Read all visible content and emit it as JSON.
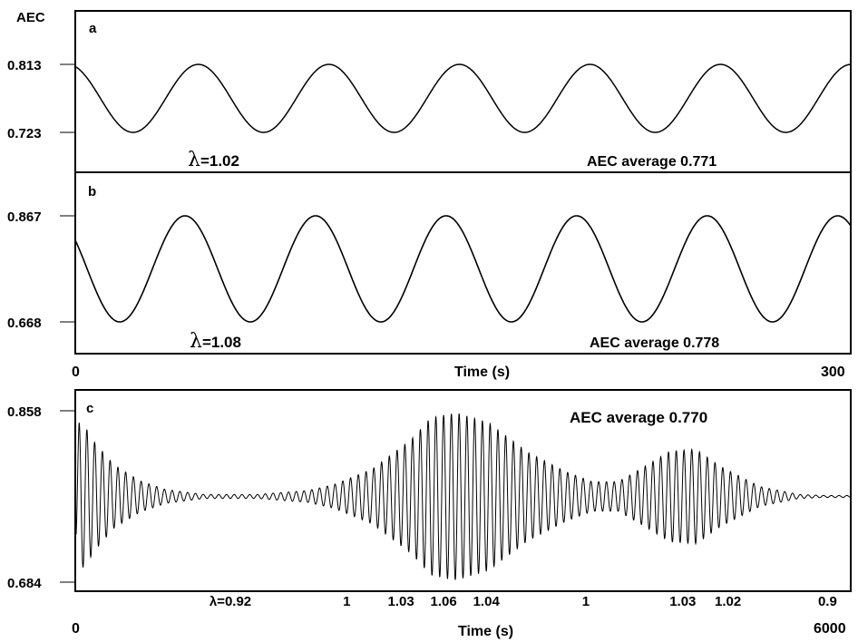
{
  "chart_data": [
    {
      "type": "line",
      "panel_label": "a",
      "ylabel": "AEC",
      "yticks": [
        "0.813",
        "0.723"
      ],
      "ylim": [
        0.723,
        0.813
      ],
      "xlim": [
        0,
        300
      ],
      "oscillation": {
        "min": 0.723,
        "max": 0.813,
        "period_s": 50.5,
        "start_phase": "falling from 0.81"
      },
      "annotations": {
        "lambda_symbol": "λ",
        "lambda_value": "=1.02",
        "average": "AEC average 0.771"
      }
    },
    {
      "type": "line",
      "panel_label": "b",
      "yticks": [
        "0.867",
        "0.668"
      ],
      "ylim": [
        0.668,
        0.867
      ],
      "xlim": [
        0,
        300
      ],
      "oscillation": {
        "min": 0.668,
        "max": 0.867,
        "period_s": 50.5,
        "start_phase": "falling from 0.84"
      },
      "annotations": {
        "lambda_symbol": "λ",
        "lambda_value": "=1.08",
        "average": "AEC average 0.778"
      },
      "xticks": [
        "0",
        "300"
      ],
      "xlabel": "Time (s)"
    },
    {
      "type": "line",
      "panel_label": "c",
      "yticks": [
        "0.858",
        "0.684"
      ],
      "ylim": [
        0.684,
        0.858
      ],
      "xlim": [
        0,
        6000
      ],
      "xticks": [
        "0",
        "6000"
      ],
      "xlabel": "Time (s)",
      "baseline": 0.771,
      "envelope": {
        "time_s": [
          0,
          30,
          80,
          150,
          300,
          500,
          700,
          1000,
          1400,
          1800,
          2000,
          2300,
          2600,
          2750,
          2950,
          3200,
          3500,
          3800,
          4000,
          4200,
          4400,
          4600,
          4800,
          5000,
          5300,
          5600,
          5800,
          6000
        ],
        "half_amplitude": [
          0.045,
          0.075,
          0.07,
          0.055,
          0.032,
          0.016,
          0.007,
          0.002,
          0.002,
          0.006,
          0.012,
          0.028,
          0.058,
          0.08,
          0.085,
          0.075,
          0.045,
          0.025,
          0.015,
          0.015,
          0.03,
          0.046,
          0.048,
          0.03,
          0.01,
          0.002,
          0.001,
          0.001
        ]
      },
      "lambda_labels": [
        {
          "t": 1200,
          "text": "λ=0.92"
        },
        {
          "t": 2100,
          "text": "1"
        },
        {
          "t": 2520,
          "text": "1.03"
        },
        {
          "t": 2850,
          "text": "1.06"
        },
        {
          "t": 3180,
          "text": "1.04"
        },
        {
          "t": 3950,
          "text": "1"
        },
        {
          "t": 4700,
          "text": "1.03"
        },
        {
          "t": 5050,
          "text": "1.02"
        },
        {
          "t": 5820,
          "text": "0.9"
        }
      ],
      "annotations": {
        "average": "AEC average 0.770"
      }
    }
  ]
}
